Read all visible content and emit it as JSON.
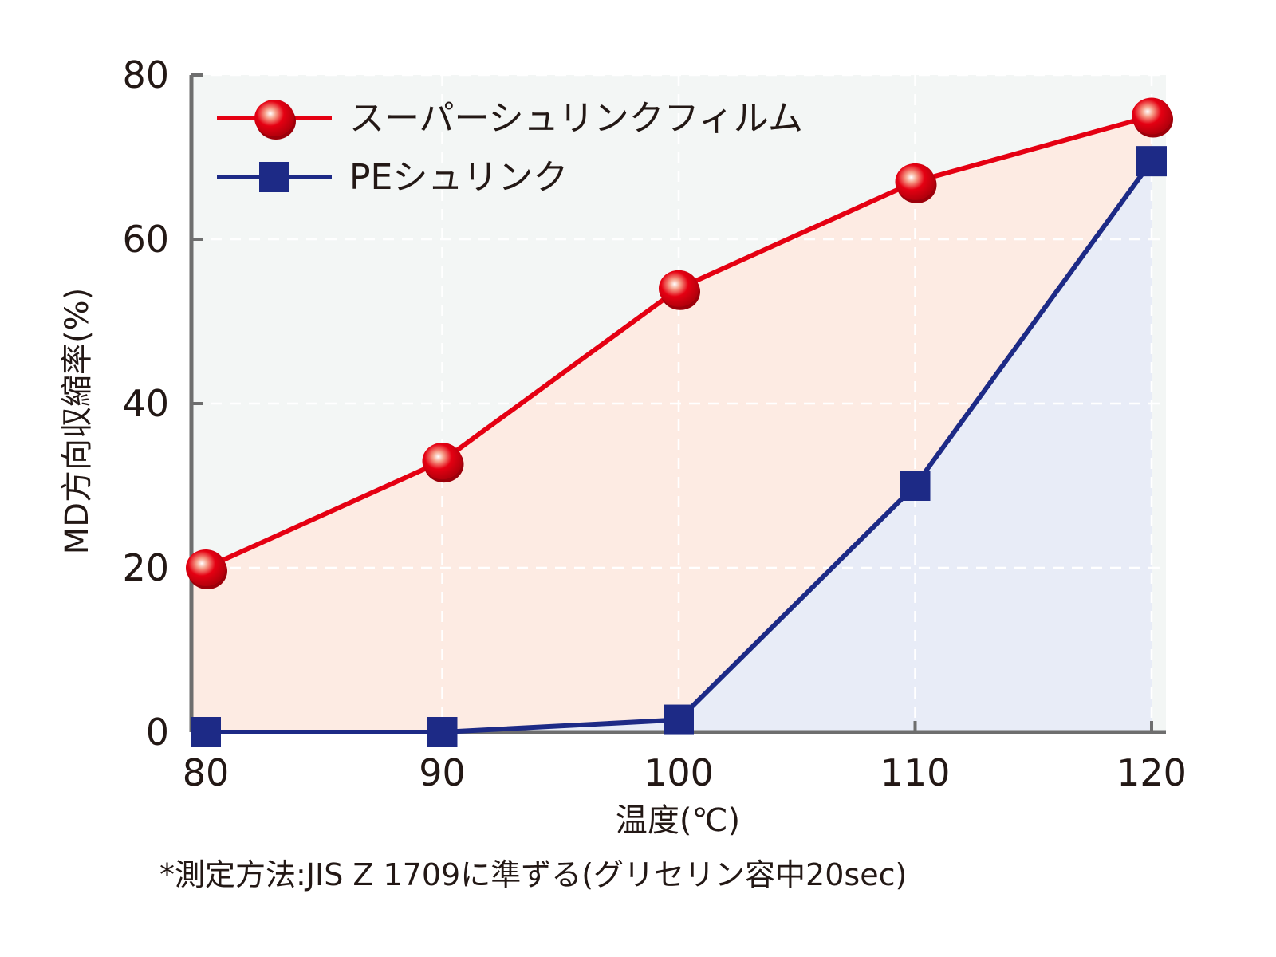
{
  "chart_data": {
    "type": "line",
    "x": [
      80,
      90,
      100,
      110,
      120
    ],
    "xlim": [
      80,
      120
    ],
    "ylim": [
      0,
      80
    ],
    "xticks": [
      "80",
      "90",
      "100",
      "110",
      "120"
    ],
    "yticks": [
      "0",
      "20",
      "40",
      "60",
      "80"
    ],
    "xlabel": "温度(℃)",
    "ylabel": "MD方向収縮率(%)",
    "note": "*測定方法:JIS Z 1709に準ずる(グリセリン容中20sec)",
    "grid": true,
    "legend_position": "top-left",
    "series": [
      {
        "name": "スーパーシュリンクフィルム",
        "values": [
          20,
          33,
          54,
          67,
          75
        ],
        "color": "#e50012",
        "fill": "#fdebe3",
        "marker": "circle"
      },
      {
        "name": "PEシュリンク",
        "values": [
          0,
          0,
          1.5,
          30,
          69.5
        ],
        "color": "#1d2a86",
        "fill": "#e8ecf7",
        "marker": "square"
      }
    ],
    "plot_background": "#f3f6f5"
  }
}
